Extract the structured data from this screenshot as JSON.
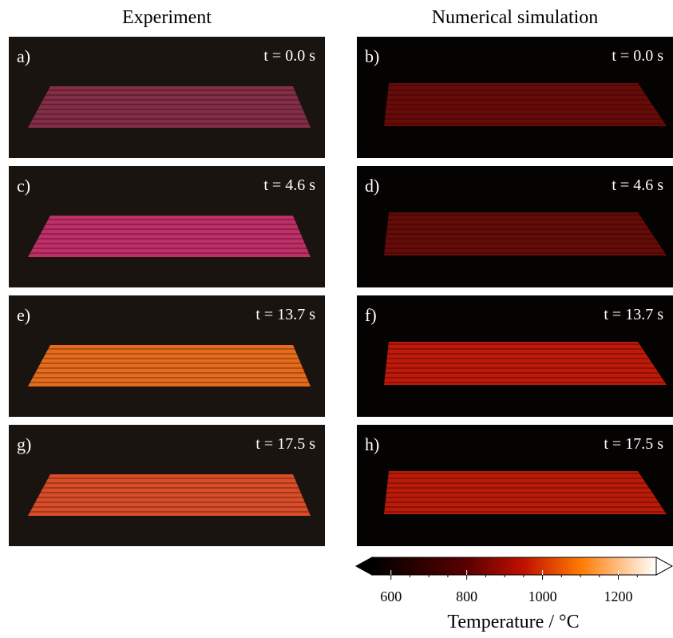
{
  "columns": [
    "Experiment",
    "Numerical simulation"
  ],
  "panels": [
    {
      "label": "a)",
      "time": "t = 0.0 s",
      "plate_color": "#8a2e4a"
    },
    {
      "label": "b)",
      "time": "t = 0.0 s",
      "plate_color": "#6e0c08"
    },
    {
      "label": "c)",
      "time": "t = 4.6 s",
      "plate_color": "#c8306e"
    },
    {
      "label": "d)",
      "time": "t = 4.6 s",
      "plate_color": "#6a0c08"
    },
    {
      "label": "e)",
      "time": "t = 13.7 s",
      "plate_color": "#f2701e"
    },
    {
      "label": "f)",
      "time": "t = 13.7 s",
      "plate_color": "#c81a0a"
    },
    {
      "label": "g)",
      "time": "t = 17.5 s",
      "plate_color": "#e4502a"
    },
    {
      "label": "h)",
      "time": "t = 17.5 s",
      "plate_color": "#c41c0a"
    }
  ],
  "colorbar": {
    "label": "Temperature / °C",
    "lim": [
      550,
      1300
    ],
    "ticks": [
      600,
      800,
      1000,
      1200
    ],
    "minor_ticks": [
      650,
      700,
      750,
      850,
      900,
      950,
      1050,
      1100,
      1150,
      1250
    ],
    "colormap": [
      {
        "value": 550,
        "color": "#000000"
      },
      {
        "value": 800,
        "color": "#5a0000"
      },
      {
        "value": 950,
        "color": "#c01000"
      },
      {
        "value": 1100,
        "color": "#ff7a00"
      },
      {
        "value": 1300,
        "color": "#ffffff"
      }
    ]
  }
}
